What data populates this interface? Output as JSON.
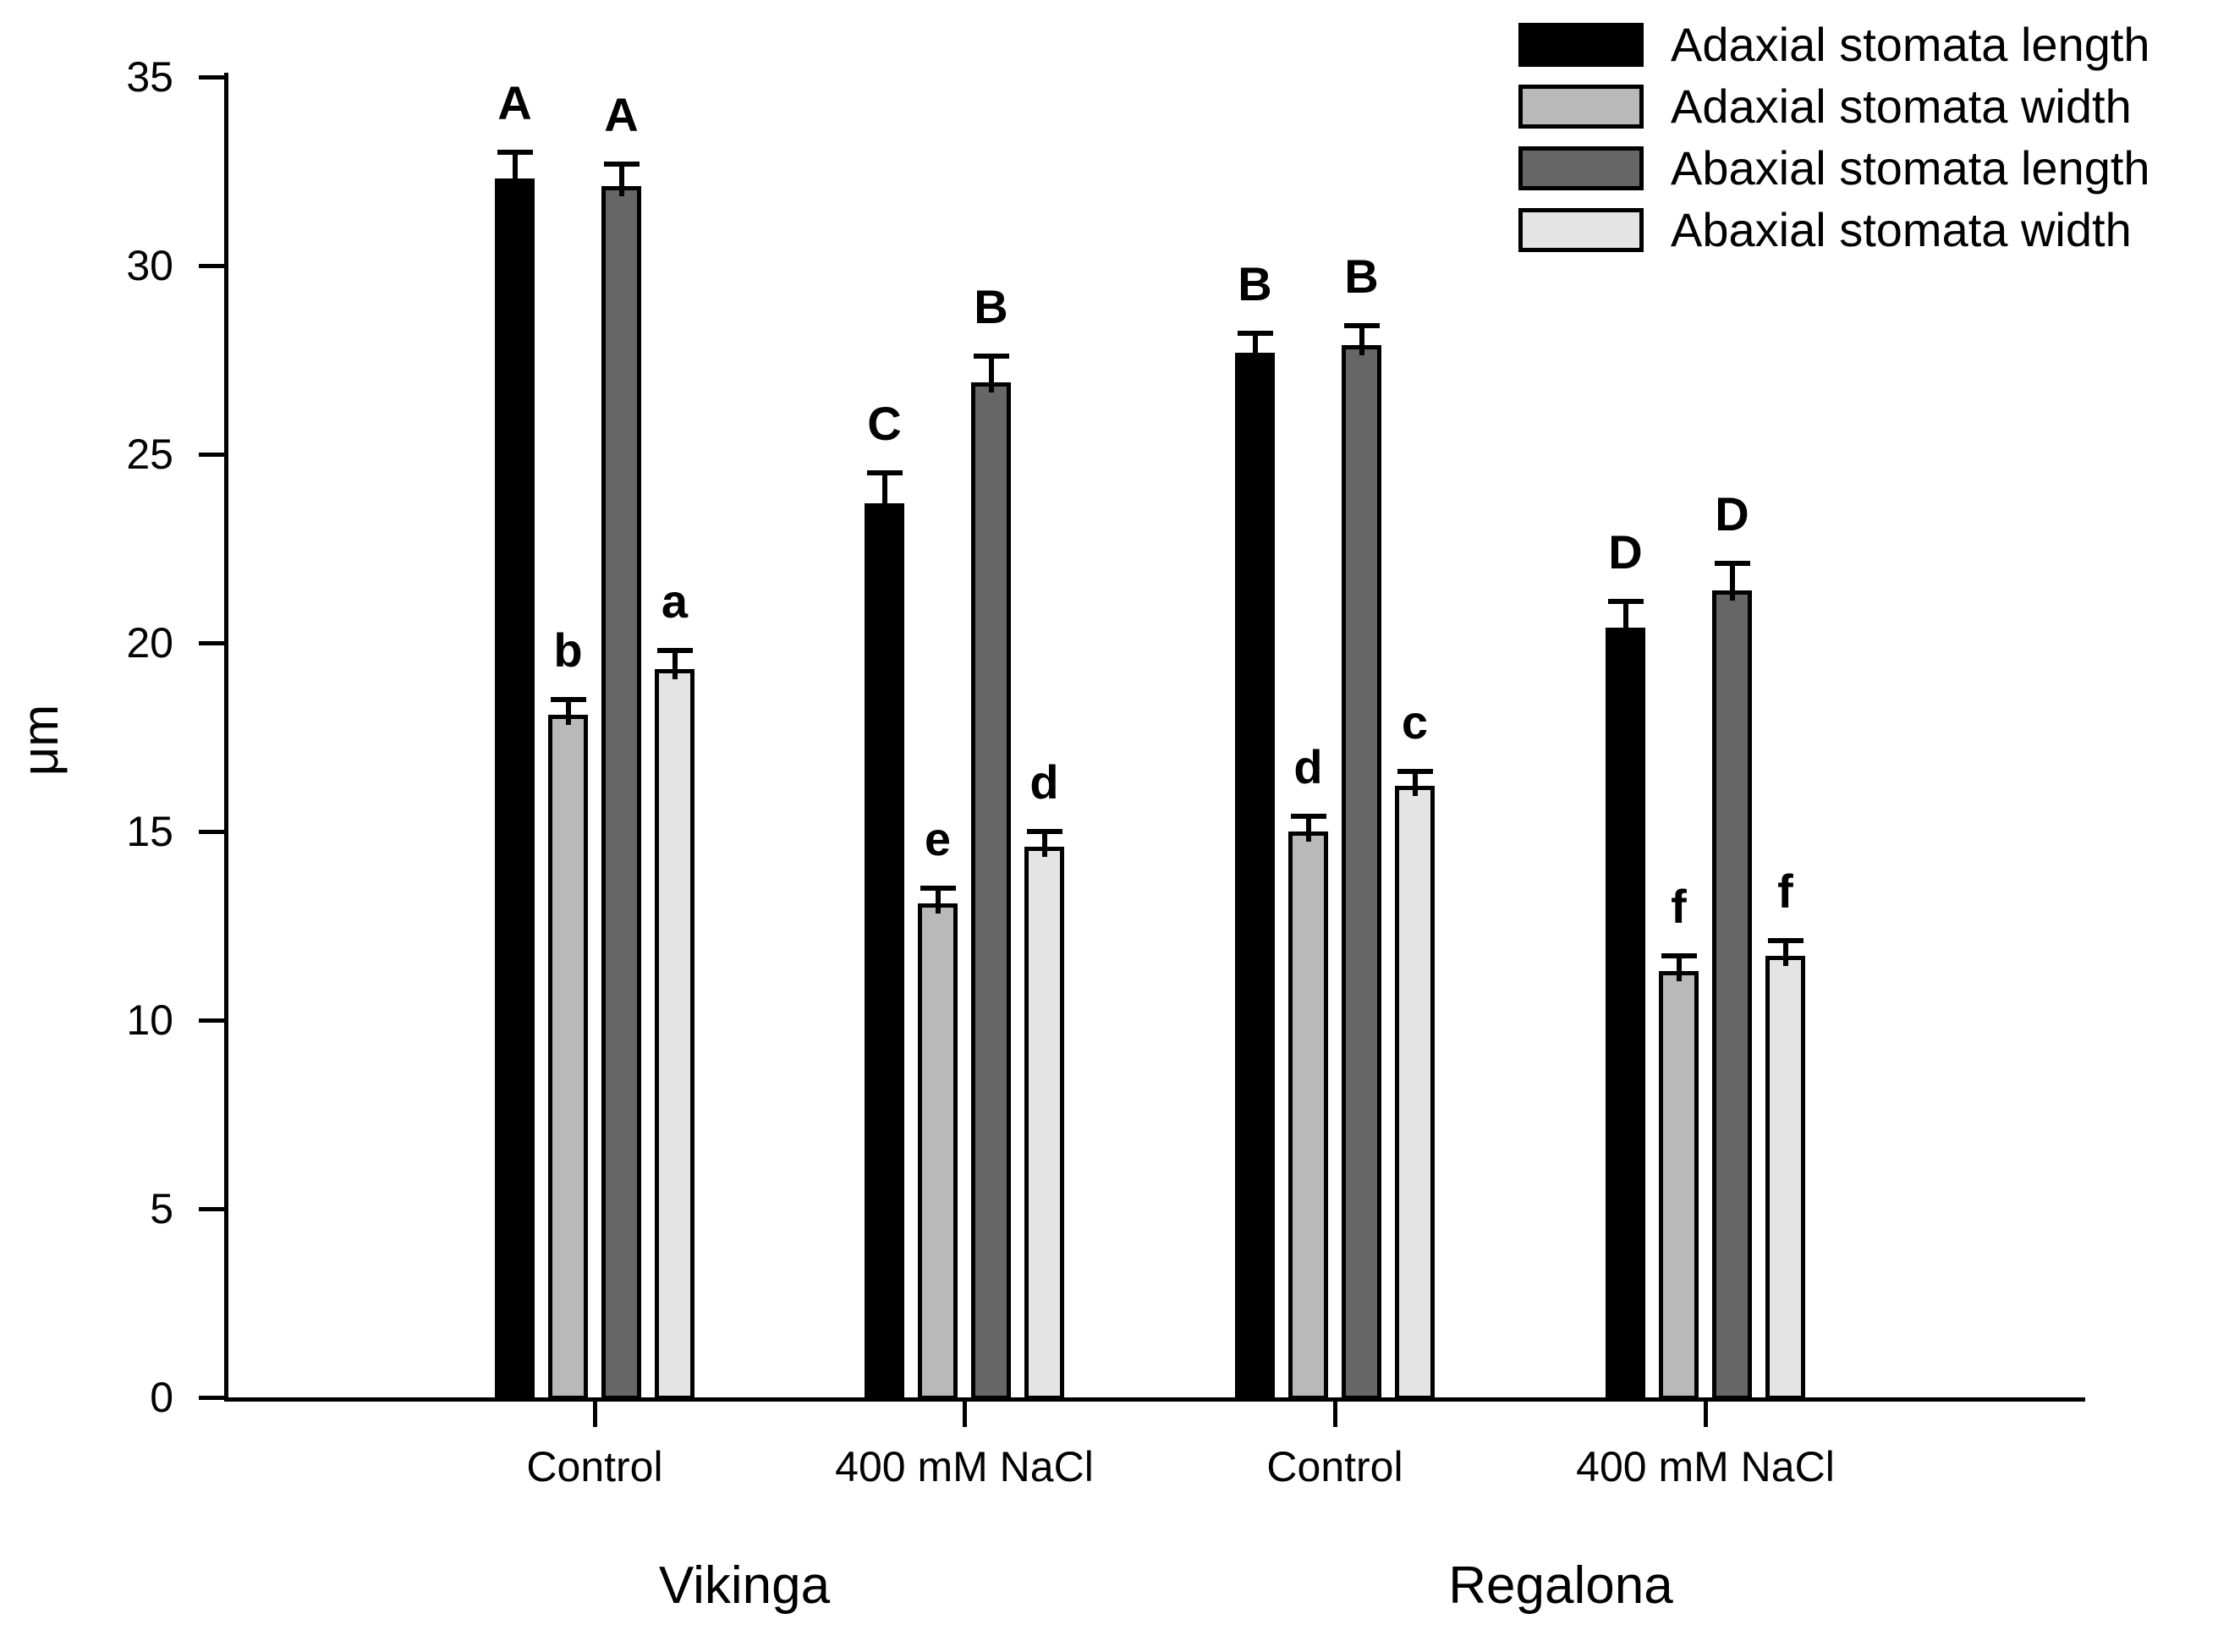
{
  "chart_data": {
    "type": "bar",
    "title": "",
    "xlabel": "",
    "ylabel": "μm",
    "ylim": [
      0,
      35
    ],
    "yticks": [
      0,
      5,
      10,
      15,
      20,
      25,
      30,
      35
    ],
    "grid": false,
    "legend_position": "top-right",
    "series": [
      {
        "name": "Adaxial stomata length",
        "color": "#000000"
      },
      {
        "name": "Adaxial stomata width",
        "color": "#b9b9b9"
      },
      {
        "name": "Abaxial stomata length",
        "color": "#666666"
      },
      {
        "name": "Abaxial stomata width",
        "color": "#e4e4e4"
      }
    ],
    "variety_labels": [
      "Vikinga",
      "Regalona"
    ],
    "groups": [
      {
        "variety": "Vikinga",
        "treatment": "Control",
        "bars": [
          {
            "series": "Adaxial stomata length",
            "value": 32.3,
            "error": 0.7,
            "letter": "A"
          },
          {
            "series": "Adaxial stomata width",
            "value": 18.1,
            "error": 0.4,
            "letter": "b"
          },
          {
            "series": "Abaxial stomata length",
            "value": 32.1,
            "error": 0.6,
            "letter": "A"
          },
          {
            "series": "Abaxial stomata width",
            "value": 19.3,
            "error": 0.5,
            "letter": "a"
          }
        ]
      },
      {
        "variety": "Vikinga",
        "treatment": "400 mM NaCl",
        "bars": [
          {
            "series": "Adaxial stomata length",
            "value": 23.7,
            "error": 0.8,
            "letter": "C"
          },
          {
            "series": "Adaxial stomata width",
            "value": 13.1,
            "error": 0.4,
            "letter": "e"
          },
          {
            "series": "Abaxial stomata length",
            "value": 26.9,
            "error": 0.7,
            "letter": "B"
          },
          {
            "series": "Abaxial stomata width",
            "value": 14.6,
            "error": 0.4,
            "letter": "d"
          }
        ]
      },
      {
        "variety": "Regalona",
        "treatment": "Control",
        "bars": [
          {
            "series": "Adaxial stomata length",
            "value": 27.7,
            "error": 0.5,
            "letter": "B"
          },
          {
            "series": "Adaxial stomata width",
            "value": 15.0,
            "error": 0.4,
            "letter": "d"
          },
          {
            "series": "Abaxial stomata length",
            "value": 27.9,
            "error": 0.5,
            "letter": "B"
          },
          {
            "series": "Abaxial stomata width",
            "value": 16.2,
            "error": 0.4,
            "letter": "c"
          }
        ]
      },
      {
        "variety": "Regalona",
        "treatment": "400 mM NaCl",
        "bars": [
          {
            "series": "Adaxial stomata length",
            "value": 20.4,
            "error": 0.7,
            "letter": "D"
          },
          {
            "series": "Adaxial stomata width",
            "value": 11.3,
            "error": 0.4,
            "letter": "f"
          },
          {
            "series": "Abaxial stomata length",
            "value": 21.4,
            "error": 0.7,
            "letter": "D"
          },
          {
            "series": "Abaxial stomata width",
            "value": 11.7,
            "error": 0.4,
            "letter": "f"
          }
        ]
      }
    ]
  }
}
